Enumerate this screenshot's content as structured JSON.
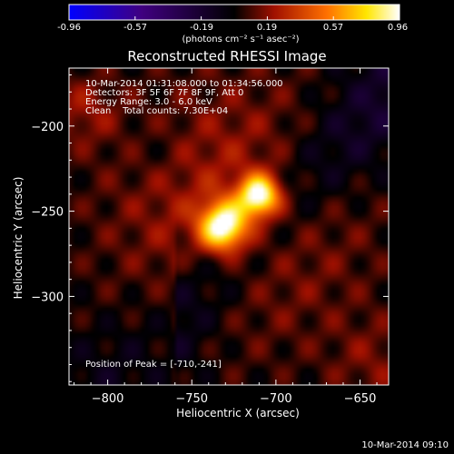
{
  "chart_data": {
    "type": "heatmap",
    "title": "Reconstructed RHESSI Image",
    "xlabel": "Heliocentric X (arcsec)",
    "ylabel": "Heliocentric Y (arcsec)",
    "xlim": [
      -823,
      -633
    ],
    "ylim": [
      -352,
      -166
    ],
    "x_ticks": [
      -800,
      -750,
      -700,
      -650
    ],
    "y_ticks": [
      -200,
      -250,
      -300
    ],
    "colorbar": {
      "min": -0.96,
      "max": 0.96,
      "ticks": [
        "-0.96",
        "-0.57",
        "-0.19",
        "0.19",
        "0.57",
        "0.96"
      ],
      "unit": "(photons cm⁻² s⁻¹ asec⁻²)",
      "colormap": [
        "#0000ff",
        "#400080",
        "#000000",
        "#a01000",
        "#ff7000",
        "#ffe600",
        "#ffffff"
      ]
    },
    "sources": [
      {
        "x": -731,
        "y": -259,
        "peak": 0.96
      },
      {
        "x": -710,
        "y": -241,
        "peak": 0.95
      }
    ],
    "info_lines": [
      "10-Mar-2014 01:31:08.000 to 01:34:56.000",
      "Detectors: 3F 5F 6F 7F 8F 9F, Att 0",
      "Energy Range: 3.0 - 6.0 keV",
      "Clean    Total counts: 7.30E+04"
    ],
    "peak_label": "Position of Peak = [-710,-241]"
  },
  "footer": {
    "timestamp": "10-Mar-2014 09:10"
  }
}
